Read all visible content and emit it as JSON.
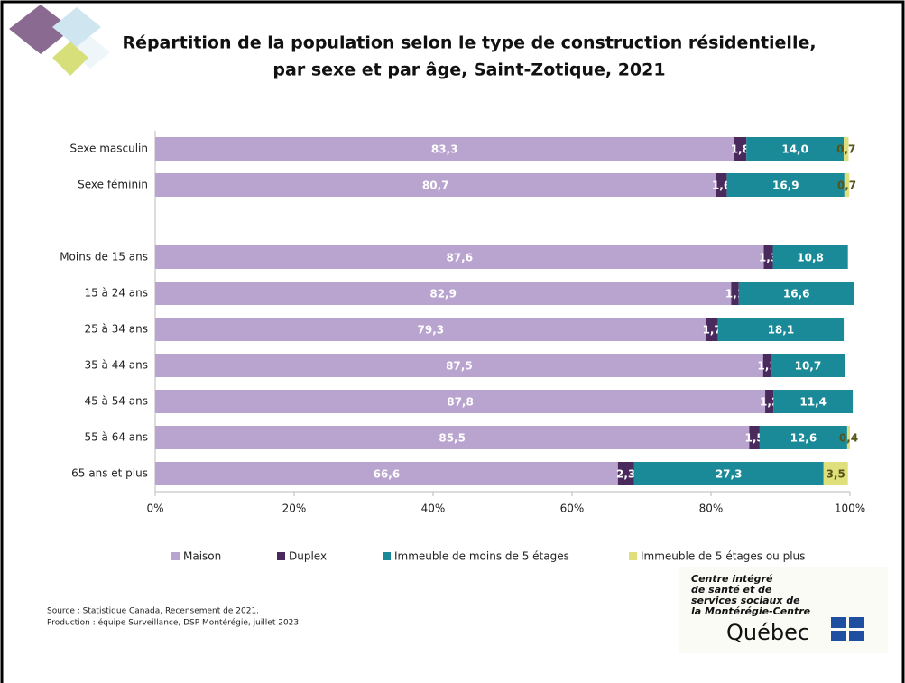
{
  "chart_data": {
    "type": "stacked-bar-horizontal",
    "title": [
      "Répartition de la population selon le type de construction résidentielle,",
      "par sexe et par âge, Saint-Zotique, 2021"
    ],
    "categories": [
      "Sexe masculin",
      "Sexe féminin",
      null,
      "Moins de 15 ans",
      "15 à 24 ans",
      "25 à 34 ans",
      "35 à 44 ans",
      "45 à 54 ans",
      "55 à 64 ans",
      "65 ans et plus"
    ],
    "series": [
      {
        "name": "Maison",
        "color": "#b9a3cf",
        "values": [
          83.3,
          80.7,
          null,
          87.6,
          82.9,
          79.3,
          87.5,
          87.8,
          85.5,
          66.6
        ],
        "value_labels": [
          "83,3",
          "80,7",
          null,
          "87,6",
          "82,9",
          "79,3",
          "87,5",
          "87,8",
          "85,5",
          "66,6"
        ]
      },
      {
        "name": "Duplex",
        "color": "#4a2a5c",
        "values": [
          1.8,
          1.6,
          null,
          1.3,
          1.1,
          1.7,
          1.1,
          1.2,
          1.5,
          2.3
        ],
        "value_labels": [
          "1,8",
          "1,6",
          null,
          "1,3",
          "1,1",
          "1,7",
          "1,1",
          "1,2",
          "1,5",
          "2,3"
        ]
      },
      {
        "name": "Immeuble de moins de 5 étages",
        "color": "#1a8a98",
        "values": [
          14.0,
          16.9,
          null,
          10.8,
          16.6,
          18.1,
          10.7,
          11.4,
          12.6,
          27.3
        ],
        "value_labels": [
          "14,0",
          "16,9",
          null,
          "10,8",
          "16,6",
          "18,1",
          "10,7",
          "11,4",
          "12,6",
          "27,3"
        ]
      },
      {
        "name": "Immeuble de 5 étages ou plus",
        "color": "#dfdf7c",
        "values": [
          0.7,
          0.7,
          null,
          null,
          null,
          null,
          null,
          null,
          0.4,
          3.5
        ],
        "value_labels": [
          "0,7",
          "0,7",
          null,
          null,
          null,
          null,
          null,
          null,
          "0,4",
          "3,5"
        ]
      }
    ],
    "xlim": [
      0,
      100
    ],
    "xticks": [
      {
        "value": 0,
        "label": "0%"
      },
      {
        "value": 20,
        "label": "20%"
      },
      {
        "value": 40,
        "label": "40%"
      },
      {
        "value": 60,
        "label": "60%"
      },
      {
        "value": 80,
        "label": "80%"
      },
      {
        "value": 100,
        "label": "100%"
      }
    ],
    "source": [
      "Source : Statistique Canada, Recensement de 2021.",
      "Production : équipe Surveillance, DSP Montérégie, juillet 2023."
    ],
    "logo": {
      "lines": [
        "Centre intégré",
        "de santé et de",
        "services sociaux de",
        "la Montérégie-Centre"
      ],
      "wordmark": "Québec"
    }
  }
}
